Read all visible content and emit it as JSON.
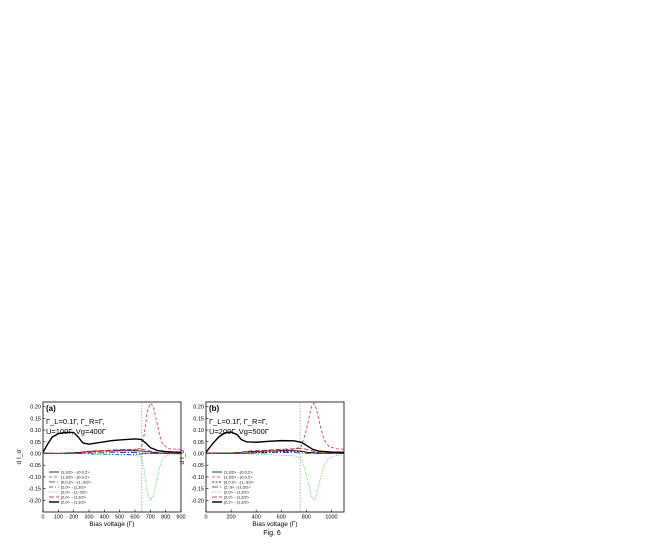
{
  "caption": "Fig. 6",
  "chart_data": [
    {
      "type": "line",
      "panel_label": "(a)",
      "annotation": [
        "Γ_L=0.1Γ, Γ_R=Γ,",
        "U=100Γ, Vg=400Γ"
      ],
      "xlabel": "Bias voltage (Γ)",
      "ylabel": "d I_σ",
      "xlim": [
        0,
        900
      ],
      "ylim": [
        -0.25,
        0.22
      ],
      "xticks": [
        "0",
        "100",
        "200",
        "300",
        "400",
        "500",
        "600",
        "700",
        "800",
        "900"
      ],
      "yticks": [
        "0.20",
        "0.15",
        "0.10",
        "0.05",
        "0.00",
        "-0.05",
        "-0.10",
        "-0.15",
        "-0.20"
      ],
      "vline_x": 645,
      "legend_position": "bottom-left",
      "series": [
        {
          "name": "|1,3/2>→|0,0,2>",
          "color": "#000000",
          "dash": "",
          "points": [
            [
              0,
              0.002
            ],
            [
              100,
              0.001
            ],
            [
              200,
              0.003
            ],
            [
              250,
              0.006
            ],
            [
              300,
              0.009
            ],
            [
              350,
              0.01
            ],
            [
              400,
              0.01
            ],
            [
              500,
              0.011
            ],
            [
              600,
              0.012
            ],
            [
              650,
              0.01
            ],
            [
              700,
              0.006
            ],
            [
              750,
              0.002
            ],
            [
              800,
              0.001
            ],
            [
              900,
              0.001
            ]
          ]
        },
        {
          "name": "|1,3/2>→|0,0,2>",
          "color": "#e03030",
          "dash": "3,2",
          "points": [
            [
              0,
              0.0
            ],
            [
              200,
              0.0
            ],
            [
              300,
              0.005
            ],
            [
              400,
              0.01
            ],
            [
              500,
              0.015
            ],
            [
              600,
              0.018
            ],
            [
              640,
              0.022
            ],
            [
              660,
              0.08
            ],
            [
              680,
              0.18
            ],
            [
              700,
              0.215
            ],
            [
              720,
              0.2
            ],
            [
              740,
              0.14
            ],
            [
              760,
              0.08
            ],
            [
              780,
              0.04
            ],
            [
              820,
              0.02
            ],
            [
              900,
              0.018
            ]
          ]
        },
        {
          "name": "|0,0,2>→|1,-3/2>",
          "color": "#2222cc",
          "dash": "6,2,1,2",
          "points": [
            [
              0,
              0.0
            ],
            [
              200,
              0.0
            ],
            [
              300,
              0.002
            ],
            [
              400,
              0.003
            ],
            [
              500,
              0.004
            ],
            [
              600,
              0.004
            ],
            [
              650,
              0.002
            ],
            [
              700,
              0.0
            ],
            [
              900,
              0.0
            ]
          ]
        },
        {
          "name": "|2,0>→|1,3/2>",
          "color": "#3333aa",
          "dash": "4,2,1,2,1,2",
          "points": [
            [
              0,
              0.0
            ],
            [
              200,
              0.0
            ],
            [
              300,
              -0.002
            ],
            [
              400,
              -0.003
            ],
            [
              500,
              -0.004
            ],
            [
              600,
              -0.004
            ],
            [
              650,
              -0.002
            ],
            [
              700,
              0.0
            ],
            [
              900,
              0.0
            ]
          ]
        },
        {
          "name": "|2,0>→|1,-3/2>",
          "color": "#33cc33",
          "dash": "1,1.5",
          "points": [
            [
              0,
              0.0
            ],
            [
              200,
              0.0
            ],
            [
              300,
              -0.002
            ],
            [
              400,
              -0.004
            ],
            [
              500,
              -0.006
            ],
            [
              600,
              -0.008
            ],
            [
              640,
              -0.012
            ],
            [
              660,
              -0.07
            ],
            [
              680,
              -0.17
            ],
            [
              700,
              -0.2
            ],
            [
              720,
              -0.18
            ],
            [
              740,
              -0.12
            ],
            [
              760,
              -0.06
            ],
            [
              780,
              -0.02
            ],
            [
              820,
              -0.006
            ],
            [
              900,
              -0.004
            ]
          ]
        },
        {
          "name": "|2,0>→|1,3/2>",
          "color": "#aa2222",
          "dash": "5,2",
          "points": [
            [
              0,
              0.0
            ],
            [
              200,
              0.0
            ],
            [
              250,
              0.004
            ],
            [
              300,
              0.01
            ],
            [
              400,
              0.013
            ],
            [
              500,
              0.016
            ],
            [
              600,
              0.018
            ],
            [
              650,
              0.018
            ],
            [
              700,
              0.01
            ],
            [
              750,
              0.004
            ],
            [
              800,
              0.002
            ],
            [
              900,
              0.002
            ]
          ]
        },
        {
          "name": "|2,0>→|1,3/2>",
          "color": "#000000",
          "dash": "",
          "width": 1.4,
          "points": [
            [
              0,
              0.005
            ],
            [
              30,
              0.04
            ],
            [
              60,
              0.07
            ],
            [
              100,
              0.085
            ],
            [
              150,
              0.09
            ],
            [
              200,
              0.09
            ],
            [
              230,
              0.07
            ],
            [
              260,
              0.045
            ],
            [
              300,
              0.04
            ],
            [
              350,
              0.045
            ],
            [
              400,
              0.05
            ],
            [
              450,
              0.055
            ],
            [
              500,
              0.058
            ],
            [
              550,
              0.06
            ],
            [
              600,
              0.062
            ],
            [
              640,
              0.06
            ],
            [
              670,
              0.045
            ],
            [
              700,
              0.025
            ],
            [
              750,
              0.012
            ],
            [
              800,
              0.008
            ],
            [
              850,
              0.006
            ],
            [
              900,
              0.005
            ]
          ]
        }
      ]
    },
    {
      "type": "line",
      "panel_label": "(b)",
      "annotation": [
        "Γ_L=0.1Γ, Γ_R=Γ,",
        "U=200Γ, Vg=500Γ"
      ],
      "xlabel": "Bias voltage (Γ)",
      "ylabel": "d I_σ",
      "xlim": [
        0,
        1100
      ],
      "ylim": [
        -0.25,
        0.22
      ],
      "xticks": [
        "0",
        "200",
        "400",
        "600",
        "800",
        "1000"
      ],
      "yticks": [
        "0.20",
        "0.15",
        "0.10",
        "0.05",
        "0.00",
        "-0.05",
        "-0.10",
        "-0.15",
        "-0.20"
      ],
      "vline_x": 750,
      "legend_position": "bottom-left",
      "series": [
        {
          "name": "|1,3/2>→|0,0,2>",
          "color": "#000000",
          "dash": "",
          "points": [
            [
              0,
              0.002
            ],
            [
              200,
              0.002
            ],
            [
              300,
              0.006
            ],
            [
              400,
              0.009
            ],
            [
              500,
              0.011
            ],
            [
              600,
              0.012
            ],
            [
              700,
              0.012
            ],
            [
              760,
              0.01
            ],
            [
              820,
              0.004
            ],
            [
              900,
              0.002
            ],
            [
              1100,
              0.001
            ]
          ]
        },
        {
          "name": "|1,3/2>→|0,0,2>",
          "color": "#e03030",
          "dash": "3,2",
          "points": [
            [
              0,
              0.0
            ],
            [
              300,
              0.0
            ],
            [
              400,
              0.006
            ],
            [
              500,
              0.01
            ],
            [
              600,
              0.014
            ],
            [
              700,
              0.018
            ],
            [
              760,
              0.03
            ],
            [
              800,
              0.1
            ],
            [
              840,
              0.2
            ],
            [
              860,
              0.215
            ],
            [
              880,
              0.19
            ],
            [
              910,
              0.12
            ],
            [
              940,
              0.06
            ],
            [
              980,
              0.03
            ],
            [
              1040,
              0.02
            ],
            [
              1100,
              0.018
            ]
          ]
        },
        {
          "name": "|0,0,2>→|1,-3/2>",
          "color": "#000000",
          "dash": "2,1.5",
          "points": [
            [
              0,
              0.0
            ],
            [
              300,
              0.0
            ],
            [
              400,
              0.004
            ],
            [
              500,
              0.006
            ],
            [
              600,
              0.008
            ],
            [
              700,
              0.01
            ],
            [
              760,
              0.008
            ],
            [
              820,
              0.004
            ],
            [
              900,
              0.001
            ],
            [
              1100,
              0.0
            ]
          ]
        },
        {
          "name": "|2,-3>→|1,3/2>",
          "color": "#2222cc",
          "dash": "6,2,1,2",
          "points": [
            [
              0,
              0.0
            ],
            [
              300,
              0.0
            ],
            [
              400,
              0.002
            ],
            [
              500,
              0.003
            ],
            [
              600,
              0.004
            ],
            [
              700,
              0.004
            ],
            [
              760,
              0.002
            ],
            [
              820,
              0.0
            ],
            [
              1100,
              0.0
            ]
          ]
        },
        {
          "name": "|2,0>→|1,3/2>",
          "color": "#33cc33",
          "dash": "1,1.5",
          "points": [
            [
              0,
              0.0
            ],
            [
              300,
              0.0
            ],
            [
              400,
              -0.003
            ],
            [
              500,
              -0.005
            ],
            [
              600,
              -0.007
            ],
            [
              700,
              -0.01
            ],
            [
              760,
              -0.02
            ],
            [
              800,
              -0.09
            ],
            [
              840,
              -0.18
            ],
            [
              860,
              -0.2
            ],
            [
              880,
              -0.18
            ],
            [
              910,
              -0.11
            ],
            [
              940,
              -0.05
            ],
            [
              980,
              -0.02
            ],
            [
              1040,
              -0.008
            ],
            [
              1100,
              -0.005
            ]
          ]
        },
        {
          "name": "|2,0>→|1,3/2>",
          "color": "#aa2222",
          "dash": "5,2",
          "points": [
            [
              0,
              0.0
            ],
            [
              250,
              0.0
            ],
            [
              300,
              0.008
            ],
            [
              400,
              0.012
            ],
            [
              500,
              0.015
            ],
            [
              600,
              0.018
            ],
            [
              700,
              0.02
            ],
            [
              760,
              0.022
            ],
            [
              800,
              0.018
            ],
            [
              850,
              0.01
            ],
            [
              900,
              0.004
            ],
            [
              1000,
              0.002
            ],
            [
              1100,
              0.002
            ]
          ]
        },
        {
          "name": "|2,2>→|1,3/2>",
          "color": "#000000",
          "dash": "",
          "width": 1.4,
          "points": [
            [
              0,
              0.005
            ],
            [
              50,
              0.04
            ],
            [
              100,
              0.07
            ],
            [
              150,
              0.088
            ],
            [
              200,
              0.092
            ],
            [
              250,
              0.08
            ],
            [
              280,
              0.06
            ],
            [
              320,
              0.05
            ],
            [
              400,
              0.048
            ],
            [
              500,
              0.052
            ],
            [
              600,
              0.055
            ],
            [
              700,
              0.054
            ],
            [
              760,
              0.048
            ],
            [
              800,
              0.035
            ],
            [
              850,
              0.018
            ],
            [
              900,
              0.01
            ],
            [
              1000,
              0.006
            ],
            [
              1100,
              0.005
            ]
          ]
        }
      ]
    }
  ]
}
